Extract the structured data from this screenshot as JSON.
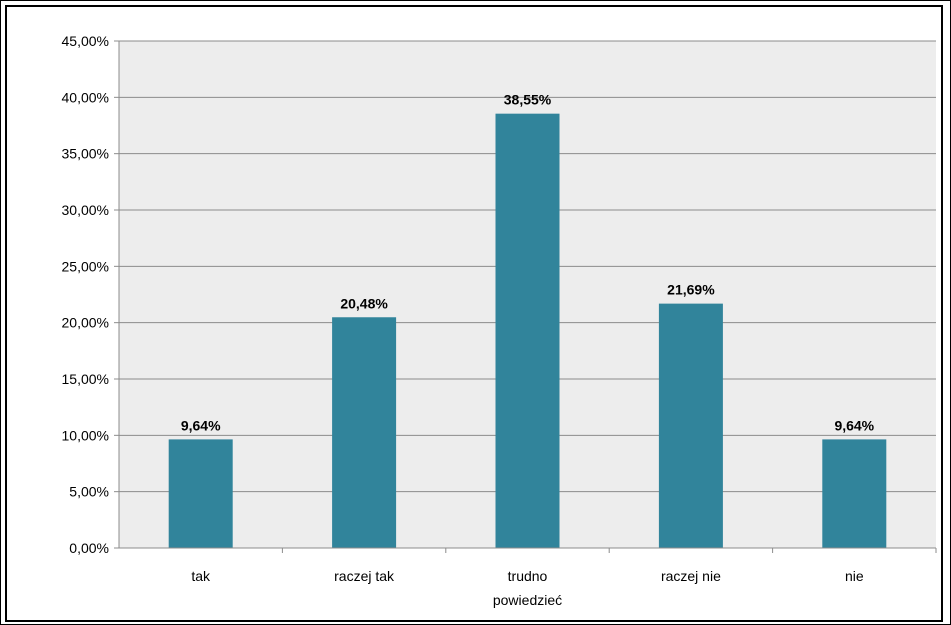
{
  "chart_data": {
    "type": "bar",
    "categories": [
      [
        "tak"
      ],
      [
        "raczej tak"
      ],
      [
        "trudno",
        "powiedzieć"
      ],
      [
        "raczej nie"
      ],
      [
        "nie"
      ]
    ],
    "values": [
      9.64,
      20.48,
      38.55,
      21.69,
      9.64
    ],
    "data_labels": [
      "9,64%",
      "20,48%",
      "38,55%",
      "21,69%",
      "9,64%"
    ],
    "y_ticks": [
      "0,00%",
      "5,00%",
      "10,00%",
      "15,00%",
      "20,00%",
      "25,00%",
      "30,00%",
      "35,00%",
      "40,00%",
      "45,00%"
    ],
    "ylim": [
      0,
      45
    ],
    "grid": true,
    "legend": "none",
    "colors": {
      "bar": "#31849B",
      "plot_bg": "#EDEDED",
      "grid": "#8C8C8C"
    }
  }
}
